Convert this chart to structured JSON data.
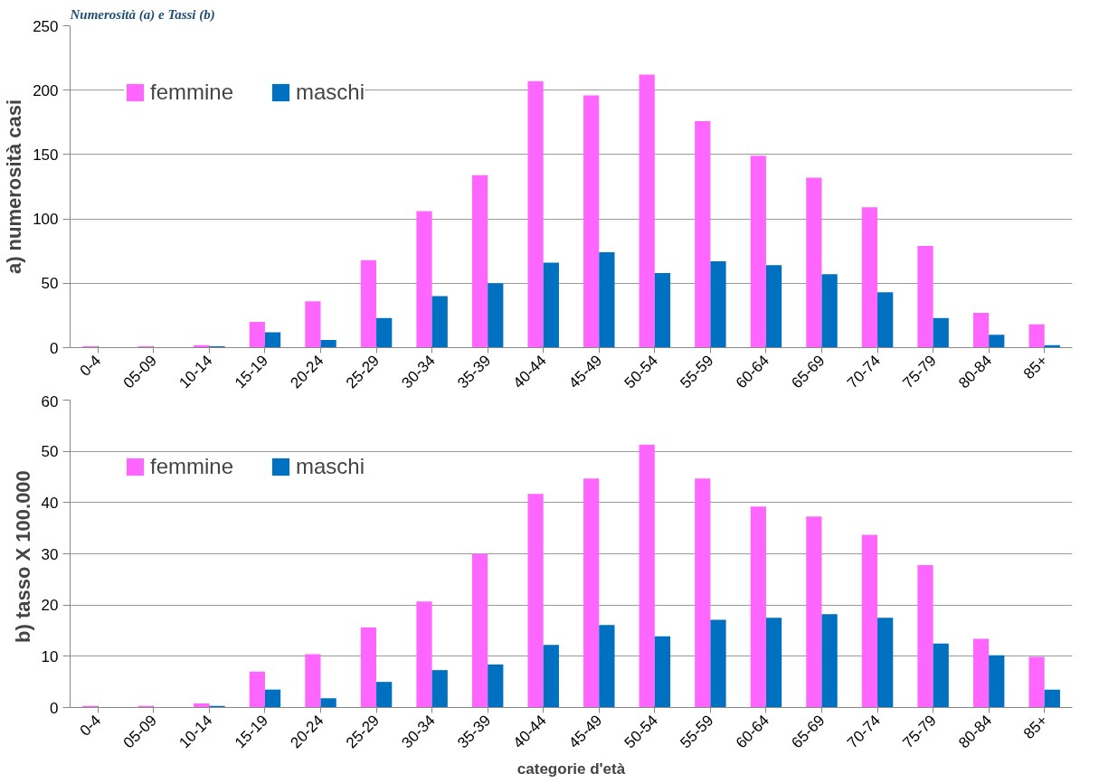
{
  "chart_data": [
    {
      "type": "bar",
      "title": "Numerosità (a) e Tassi (b)",
      "ylabel": "a) numerosità casi",
      "categories": [
        "0-4",
        "05-09",
        "10-14",
        "15-19",
        "20-24",
        "25-29",
        "30-34",
        "35-39",
        "40-44",
        "45-49",
        "50-54",
        "55-59",
        "60-64",
        "65-69",
        "70-74",
        "75-79",
        "80-84",
        "85+"
      ],
      "series": [
        {
          "name": "femmine",
          "color": "#ff66ff",
          "values": [
            1,
            1,
            2,
            20,
            36,
            68,
            106,
            134,
            207,
            196,
            212,
            176,
            149,
            132,
            109,
            79,
            27,
            18
          ]
        },
        {
          "name": "maschi",
          "color": "#0070c0",
          "values": [
            0,
            0,
            1,
            12,
            6,
            23,
            40,
            50,
            66,
            74,
            58,
            67,
            64,
            57,
            43,
            23,
            10,
            2
          ]
        }
      ],
      "ylim": [
        0,
        250
      ],
      "yticks": [
        0,
        50,
        100,
        150,
        200,
        250
      ],
      "grid": "y",
      "legend": "top left"
    },
    {
      "type": "bar",
      "ylabel": "b) tasso  X 100.000",
      "xlabel": "categorie d'età",
      "categories": [
        "0-4",
        "05-09",
        "10-14",
        "15-19",
        "20-24",
        "25-29",
        "30-34",
        "35-39",
        "40-44",
        "45-49",
        "50-54",
        "55-59",
        "60-64",
        "65-69",
        "70-74",
        "75-79",
        "80-84",
        "85+"
      ],
      "series": [
        {
          "name": "femmine",
          "color": "#ff66ff",
          "values": [
            0.3,
            0.3,
            0.8,
            7,
            10.4,
            15.6,
            20.7,
            30,
            41.7,
            44.7,
            51.3,
            44.7,
            39.2,
            37.3,
            33.7,
            27.8,
            13.4,
            9.9
          ]
        },
        {
          "name": "maschi",
          "color": "#0070c0",
          "values": [
            0,
            0,
            0.3,
            3.5,
            1.8,
            5,
            7.3,
            8.4,
            12.2,
            16.1,
            13.9,
            17.1,
            17.5,
            18.2,
            17.5,
            12.5,
            10.2,
            3.5
          ]
        }
      ],
      "ylim": [
        0,
        60
      ],
      "yticks": [
        0,
        10,
        20,
        30,
        40,
        50,
        60
      ],
      "grid": "y",
      "legend": "top left"
    }
  ]
}
